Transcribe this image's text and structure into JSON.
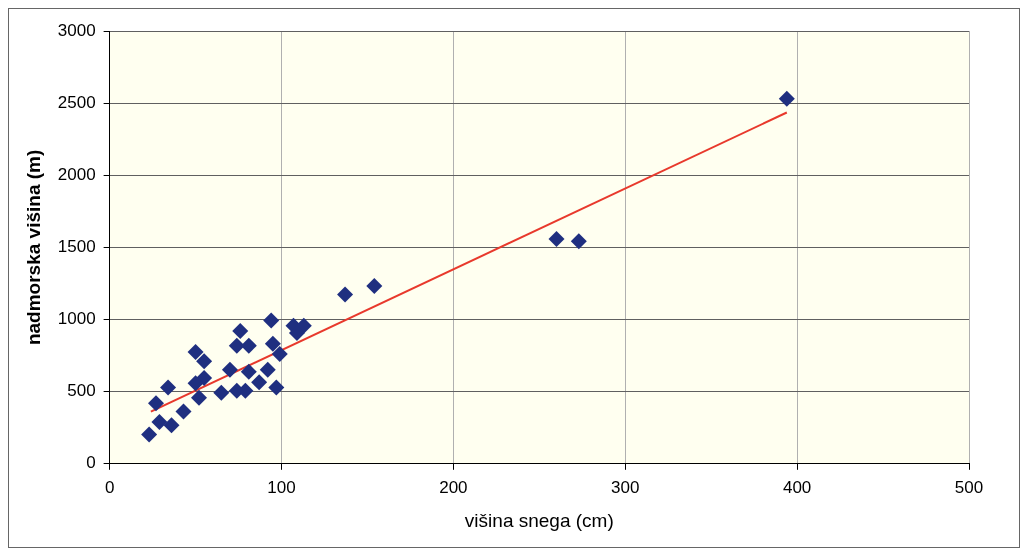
{
  "chart_data": {
    "type": "scatter",
    "xlabel": "višina snega (cm)",
    "ylabel": "nadmorska višina (m)",
    "xlim": [
      0,
      500
    ],
    "xticks": [
      0,
      100,
      200,
      300,
      400,
      500
    ],
    "ylim": [
      0,
      3000
    ],
    "yticks": [
      0,
      500,
      1000,
      1500,
      2000,
      2500,
      3000
    ],
    "grid": true,
    "legend": false,
    "series": [
      {
        "color": "#1f2f80",
        "marker": "diamond",
        "x": [
          23,
          29,
          36,
          27,
          34,
          43,
          52,
          50,
          55,
          55,
          50,
          65,
          70,
          74,
          79,
          81,
          76,
          74,
          81,
          87,
          92,
          97,
          94,
          95,
          99,
          107,
          113,
          109,
          137,
          154,
          260,
          273,
          394
        ],
        "values": [
          203,
          290,
          268,
          420,
          529,
          362,
          457,
          775,
          710,
          594,
          558,
          493,
          652,
          507,
          507,
          638,
          920,
          819,
          819,
          565,
          652,
          529,
          993,
          833,
          761,
          957,
          957,
          906,
          1174,
          1232,
          1558,
          1543,
          2530
        ]
      },
      {
        "type": "line",
        "color": "#e8392c",
        "marker": "none",
        "line_style": "solid",
        "x": [
          24,
          394
        ],
        "values": [
          362,
          2435
        ]
      }
    ]
  }
}
